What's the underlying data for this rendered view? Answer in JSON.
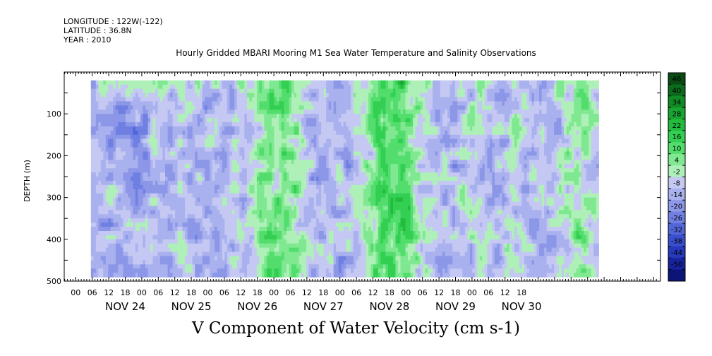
{
  "header": {
    "longitude": "LONGITUDE : 122W(-122)",
    "latitude": "LATITUDE : 36.8N",
    "year": "YEAR : 2010"
  },
  "chart_data": {
    "type": "heatmap",
    "title": "Hourly Gridded MBARI Mooring M1 Sea Water Temperature and Salinity Observations",
    "footer": "V Component of Water Velocity (cm s-1)",
    "ylabel": "DEPTH (m)",
    "ylim": [
      500,
      0
    ],
    "yaxis_inverted": true,
    "yticks": [
      100,
      200,
      300,
      400,
      500
    ],
    "data_depth_range": [
      20,
      490
    ],
    "x_hour_ticks": [
      "00",
      "06",
      "12",
      "18",
      "00",
      "06",
      "12",
      "18",
      "00",
      "06",
      "12",
      "18",
      "00",
      "06",
      "12",
      "18",
      "00",
      "06",
      "12",
      "18",
      "00",
      "06",
      "12",
      "18",
      "00",
      "06",
      "12",
      "18"
    ],
    "x_day_labels": [
      "NOV 24",
      "NOV 25",
      "NOV 26",
      "NOV 27",
      "NOV 28",
      "NOV 29",
      "NOV 30"
    ],
    "x_range_hours_from_nov23_2100": [
      0,
      189
    ],
    "colorbar": {
      "levels": [
        46,
        40,
        34,
        28,
        22,
        16,
        10,
        4,
        -2,
        -8,
        -14,
        -20,
        -26,
        -32,
        -38,
        -44,
        -50
      ],
      "colors": [
        "#0a4a14",
        "#0c6a1c",
        "#118a25",
        "#18a431",
        "#22bb3e",
        "#33cf52",
        "#52dd6d",
        "#7fe891",
        "#aef0b8",
        "#c4c8f2",
        "#a9b1ee",
        "#8c97e8",
        "#6f7fe2",
        "#5266d9",
        "#3a4fcf",
        "#2738bb",
        "#17239e",
        "#0d1478"
      ]
    },
    "field_range": [
      -30,
      30
    ],
    "dominant_values": "mostly -2 to -26 (blue) with green bands of 4 to 22 near surface and in vertical streaks"
  }
}
